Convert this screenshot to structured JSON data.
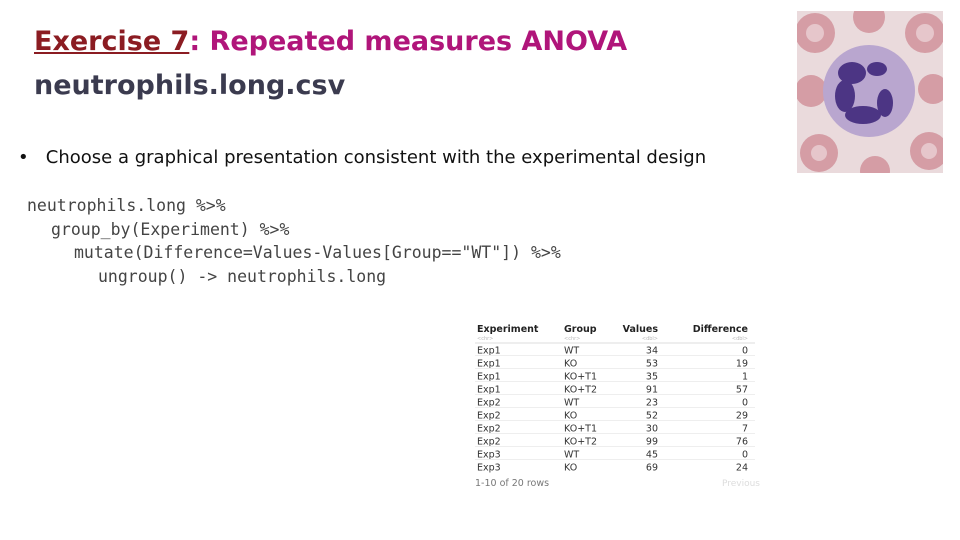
{
  "header": {
    "title_link": "Exercise 7",
    "title_rest": ": Repeated measures ANOVA",
    "subtitle": "neutrophils.long.csv"
  },
  "bullet": "Choose a graphical presentation consistent with the experimental design",
  "code": [
    "neutrophils.long %>%",
    "group_by(Experiment) %>%",
    "mutate(Difference=Values-Values[Group==\"WT\"]) %>%",
    "ungroup() -> neutrophils.long"
  ],
  "table": {
    "columns": [
      "Experiment",
      "Group",
      "Values",
      "Difference"
    ],
    "types": [
      "<chr>",
      "<chr>",
      "<dbl>",
      "<dbl>"
    ],
    "rows": [
      [
        "Exp1",
        "WT",
        34,
        0
      ],
      [
        "Exp1",
        "KO",
        53,
        19
      ],
      [
        "Exp1",
        "KO+T1",
        35,
        1
      ],
      [
        "Exp1",
        "KO+T2",
        91,
        57
      ],
      [
        "Exp2",
        "WT",
        23,
        0
      ],
      [
        "Exp2",
        "KO",
        52,
        29
      ],
      [
        "Exp2",
        "KO+T1",
        30,
        7
      ],
      [
        "Exp2",
        "KO+T2",
        99,
        76
      ],
      [
        "Exp3",
        "WT",
        45,
        0
      ],
      [
        "Exp3",
        "KO",
        69,
        24
      ]
    ],
    "footer": "1-10 of 20 rows",
    "nav": "Previous"
  }
}
